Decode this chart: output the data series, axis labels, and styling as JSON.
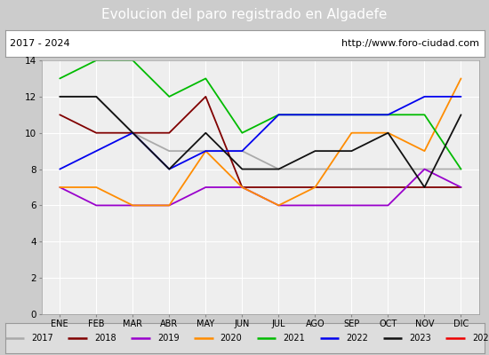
{
  "title": "Evolucion del paro registrado en Algadefe",
  "subtitle_left": "2017 - 2024",
  "subtitle_right": "http://www.foro-ciudad.com",
  "months": [
    "ENE",
    "FEB",
    "MAR",
    "ABR",
    "MAY",
    "JUN",
    "JUL",
    "AGO",
    "SEP",
    "OCT",
    "NOV",
    "DIC"
  ],
  "series": {
    "2017": {
      "color": "#aaaaaa",
      "data": [
        12,
        12,
        10,
        9,
        9,
        9,
        8,
        8,
        8,
        8,
        8,
        8
      ]
    },
    "2018": {
      "color": "#800000",
      "data": [
        11,
        10,
        10,
        10,
        12,
        7,
        7,
        7,
        7,
        7,
        7,
        7
      ]
    },
    "2019": {
      "color": "#9900cc",
      "data": [
        7,
        6,
        6,
        6,
        7,
        7,
        6,
        6,
        6,
        6,
        8,
        7
      ]
    },
    "2020": {
      "color": "#ff8c00",
      "data": [
        7,
        7,
        6,
        6,
        9,
        7,
        6,
        7,
        10,
        10,
        9,
        13
      ]
    },
    "2021": {
      "color": "#00bb00",
      "data": [
        13,
        14,
        14,
        12,
        13,
        10,
        11,
        11,
        11,
        11,
        11,
        8
      ]
    },
    "2022": {
      "color": "#0000ee",
      "data": [
        8,
        9,
        10,
        8,
        9,
        9,
        11,
        11,
        11,
        11,
        12,
        12
      ]
    },
    "2023": {
      "color": "#111111",
      "data": [
        12,
        12,
        10,
        8,
        10,
        8,
        8,
        9,
        9,
        10,
        7,
        11
      ]
    },
    "2024": {
      "color": "#ee0000",
      "data": [
        11,
        null,
        null,
        null,
        null,
        null,
        null,
        null,
        null,
        null,
        null,
        null
      ]
    }
  },
  "ylim": [
    0,
    14
  ],
  "yticks": [
    0,
    2,
    4,
    6,
    8,
    10,
    12,
    14
  ],
  "title_bg": "#5588dd",
  "title_color": "#ffffff",
  "outer_bg": "#cccccc",
  "plot_bg": "#dddddd",
  "inner_bg": "#eeeeee",
  "legend_bg": "#dddddd",
  "grid_color": "#ffffff"
}
